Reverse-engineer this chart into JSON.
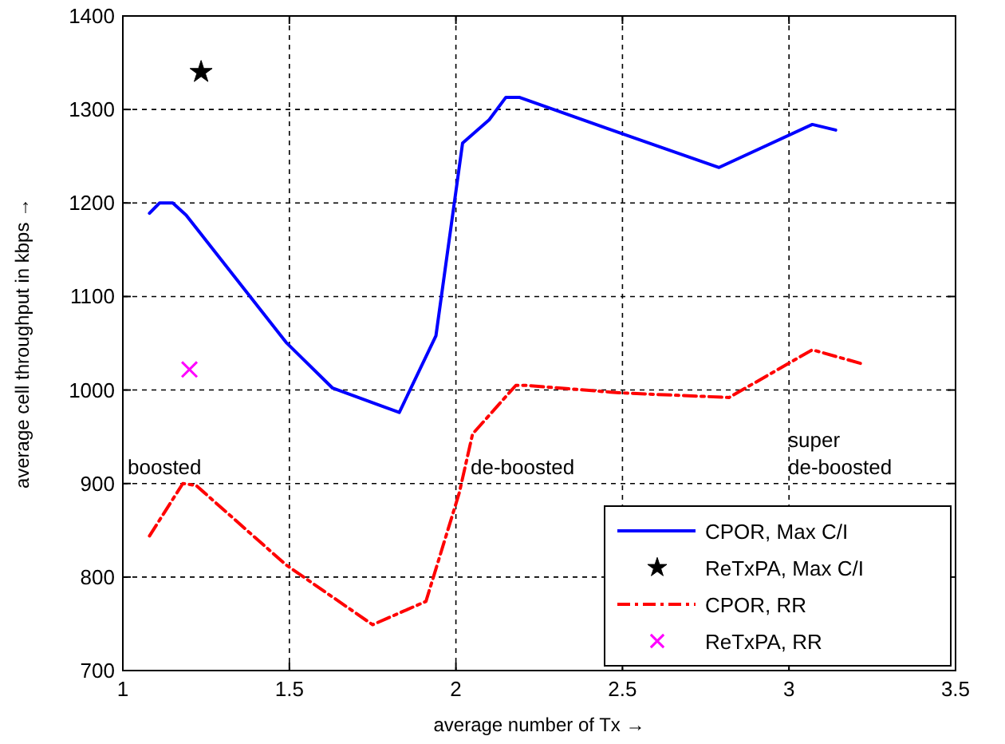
{
  "chart_data": {
    "type": "line",
    "xlabel": "average number of Tx →",
    "ylabel": "average cell throughput in kbps →",
    "xlim": [
      1,
      3.5
    ],
    "xticks": [
      1,
      1.5,
      2,
      2.5,
      3,
      3.5
    ],
    "ylim": [
      700,
      1400
    ],
    "yticks": [
      700,
      800,
      900,
      1000,
      1100,
      1200,
      1300,
      1400
    ],
    "grid": true,
    "legend": "bottom right",
    "series": [
      {
        "name": "CPOR, Max C/I",
        "color": "#0000ff",
        "line_style": "solid",
        "x": [
          1.08,
          1.11,
          1.15,
          1.19,
          1.49,
          1.63,
          1.83,
          1.94,
          2.02,
          2.1,
          2.15,
          2.19,
          2.5,
          2.79,
          3.07,
          3.14
        ],
        "values": [
          1189,
          1200,
          1200,
          1187,
          1051,
          1002,
          976,
          1058,
          1264,
          1289,
          1313,
          1313,
          1274,
          1238,
          1284,
          1278
        ]
      },
      {
        "name": "ReTxPA, Max C/I",
        "type": "scatter",
        "color": "#000000",
        "marker": "star",
        "x": [
          1.235
        ],
        "values": [
          1340
        ]
      },
      {
        "name": "CPOR, RR",
        "color": "#ff0000",
        "line_style": "dashed",
        "x": [
          1.08,
          1.18,
          1.22,
          1.49,
          1.75,
          1.91,
          2.01,
          2.05,
          2.18,
          2.21,
          2.49,
          2.82,
          3.07,
          3.22
        ],
        "values": [
          844,
          900,
          898,
          813,
          749,
          774,
          890,
          953,
          1005,
          1005,
          997,
          992,
          1043,
          1028
        ]
      },
      {
        "name": "ReTxPA, RR",
        "type": "scatter",
        "color": "#ff00ff",
        "marker": "cross",
        "x": [
          1.2
        ],
        "values": [
          1022
        ]
      }
    ],
    "annotations": [
      "boosted",
      "de-boosted",
      "super de-boosted"
    ]
  }
}
